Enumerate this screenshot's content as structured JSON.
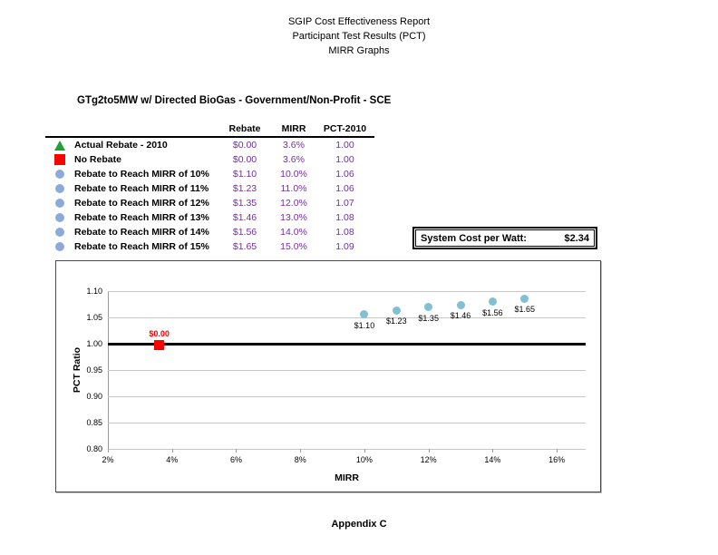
{
  "header": {
    "line1": "SGIP Cost Effectiveness Report",
    "line2": "Participant Test Results (PCT)",
    "line3": "MIRR Graphs"
  },
  "report_title": "GTg2to5MW w/ Directed BioGas - Government/Non-Profit - SCE",
  "legend_table": {
    "columns": [
      "Rebate",
      "MIRR",
      "PCT-2010"
    ],
    "rows": [
      {
        "marker": "triangle",
        "color": "#21A038",
        "label": "Actual Rebate - 2010",
        "rebate": "$0.00",
        "mirr": "3.6%",
        "pct": "1.00"
      },
      {
        "marker": "square",
        "color": "#FE0000",
        "label": "No Rebate",
        "rebate": "$0.00",
        "mirr": "3.6%",
        "pct": "1.00"
      },
      {
        "marker": "circle",
        "color": "#8FA9DC",
        "label": "Rebate to Reach MIRR of 10%",
        "rebate": "$1.10",
        "mirr": "10.0%",
        "pct": "1.06"
      },
      {
        "marker": "circle",
        "color": "#8FA9DC",
        "label": "Rebate to Reach MIRR of 11%",
        "rebate": "$1.23",
        "mirr": "11.0%",
        "pct": "1.06"
      },
      {
        "marker": "circle",
        "color": "#8FA9DC",
        "label": "Rebate to Reach MIRR of 12%",
        "rebate": "$1.35",
        "mirr": "12.0%",
        "pct": "1.07"
      },
      {
        "marker": "circle",
        "color": "#8FA9DC",
        "label": "Rebate to Reach MIRR of 13%",
        "rebate": "$1.46",
        "mirr": "13.0%",
        "pct": "1.08"
      },
      {
        "marker": "circle",
        "color": "#8FA9DC",
        "label": "Rebate to Reach MIRR of 14%",
        "rebate": "$1.56",
        "mirr": "14.0%",
        "pct": "1.08"
      },
      {
        "marker": "circle",
        "color": "#8FA9DC",
        "label": "Rebate to Reach MIRR of 15%",
        "rebate": "$1.65",
        "mirr": "15.0%",
        "pct": "1.09"
      }
    ]
  },
  "system_cost": {
    "label": "System Cost per Watt:",
    "value": "$2.34"
  },
  "chart_data": {
    "type": "scatter",
    "title": "",
    "xlabel": "MIRR",
    "ylabel": "PCT Ratio",
    "xlim": [
      2,
      16.9
    ],
    "ylim": [
      0.8,
      1.1
    ],
    "grid": "horizontal",
    "legend_position": "none",
    "x_ticks": [
      {
        "value": 2,
        "label": "2%"
      },
      {
        "value": 4,
        "label": "4%"
      },
      {
        "value": 6,
        "label": "6%"
      },
      {
        "value": 8,
        "label": "8%"
      },
      {
        "value": 10,
        "label": "10%"
      },
      {
        "value": 12,
        "label": "12%"
      },
      {
        "value": 14,
        "label": "14%"
      },
      {
        "value": 16,
        "label": "16%"
      }
    ],
    "y_ticks": [
      {
        "value": 1.1,
        "label": "1.10"
      },
      {
        "value": 1.05,
        "label": "1.05"
      },
      {
        "value": 1.0,
        "label": "1.00"
      },
      {
        "value": 0.95,
        "label": "0.95"
      },
      {
        "value": 0.9,
        "label": "0.90"
      },
      {
        "value": 0.85,
        "label": "0.85"
      },
      {
        "value": 0.8,
        "label": "0.80"
      }
    ],
    "reference_line": {
      "y": 1.0,
      "color": "#000000"
    },
    "series": [
      {
        "name": "Actual Rebate - 2010",
        "marker": "triangle",
        "color": "#21A038",
        "label_position": "none",
        "points": [
          {
            "x": 3.6,
            "y": 0.997,
            "label": ""
          }
        ]
      },
      {
        "name": "No Rebate",
        "marker": "square",
        "color": "#FE0000",
        "label_color": "#FE0000",
        "label_position": "above",
        "points": [
          {
            "x": 3.6,
            "y": 0.997,
            "label": "$0.00"
          }
        ]
      },
      {
        "name": "Rebate to Reach MIRR",
        "marker": "circle",
        "color": "#81BFD5",
        "label_color": "#000000",
        "label_position": "below",
        "points": [
          {
            "x": 10,
            "y": 1.056,
            "label": "$1.10"
          },
          {
            "x": 11,
            "y": 1.063,
            "label": "$1.23"
          },
          {
            "x": 12,
            "y": 1.069,
            "label": "$1.35"
          },
          {
            "x": 13,
            "y": 1.074,
            "label": "$1.46"
          },
          {
            "x": 14,
            "y": 1.08,
            "label": "$1.56"
          },
          {
            "x": 15,
            "y": 1.086,
            "label": "$1.65"
          }
        ]
      }
    ]
  },
  "footer": "Appendix C"
}
